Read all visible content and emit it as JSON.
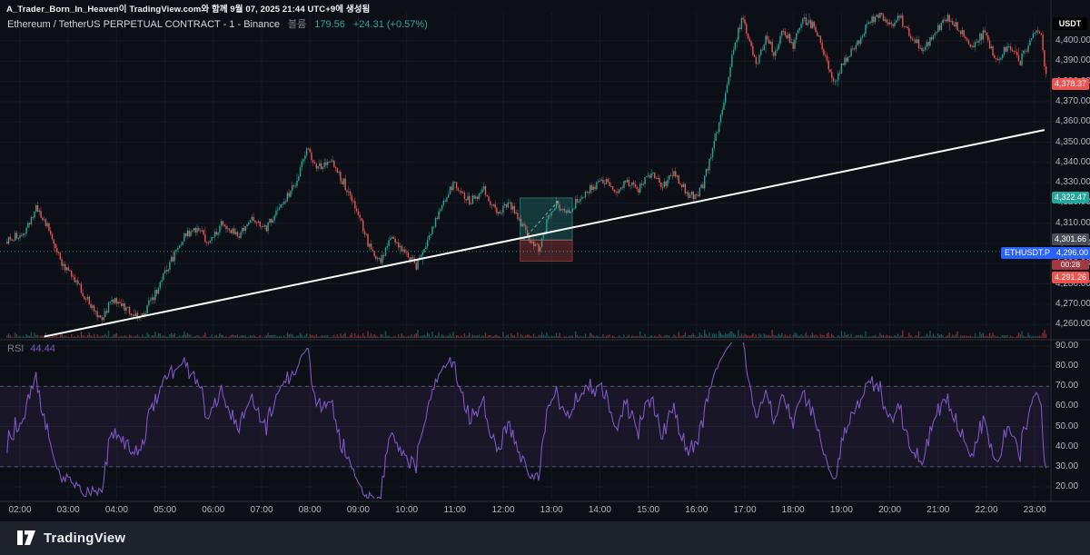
{
  "attribution": "A_Trader_Born_In_Heaven이 TradingView.com와 함께 9월 07, 2025 21:44 UTC+9에 생성됨",
  "header": {
    "symbol_title": "Ethereum / TetherUS PERPETUAL CONTRACT - 1 - Binance",
    "volume_label": "볼륨",
    "volume_value": "179.56",
    "change_text": "+24.31 (+0.57%)"
  },
  "price_scale": {
    "currency_button": "USDT",
    "ticks": [
      "4,400.00",
      "4,390.00",
      "4,380.00",
      "4,370.00",
      "4,360.00",
      "4,350.00",
      "4,340.00",
      "4,330.00",
      "4,320.00",
      "4,310.00",
      "4,300.00",
      "4,290.00",
      "4,280.00",
      "4,270.00",
      "4,260.00"
    ],
    "badges": [
      {
        "id": "last-price",
        "text": "4,378.37",
        "bg": "#ef5350",
        "price": 4378.37
      },
      {
        "id": "target-price",
        "text": "4,322.47",
        "bg": "#26a69a",
        "price": 4322.47
      },
      {
        "id": "entry-price",
        "text": "4,301.66",
        "bg": "#4a4e59",
        "price": 4301.66
      },
      {
        "id": "symbol-price",
        "label": "ETHUSDT.P",
        "text": "4,296.00",
        "bg": "#2962ff",
        "price": 4296.0,
        "countdown": "00:28",
        "countdown_bg": "#a03a40"
      },
      {
        "id": "stop-price",
        "text": "4,291.26",
        "bg": "#ef5350",
        "price": 4291.26
      }
    ]
  },
  "rsi_panel": {
    "label": "RSI",
    "value": "44.44",
    "ticks": [
      "90.00",
      "80.00",
      "70.00",
      "60.00",
      "50.00",
      "40.00",
      "30.00",
      "20.00"
    ]
  },
  "time_axis": {
    "ticks": [
      "02:00",
      "03:00",
      "04:00",
      "05:00",
      "06:00",
      "07:00",
      "08:00",
      "09:00",
      "10:00",
      "11:00",
      "12:00",
      "13:00",
      "14:00",
      "15:00",
      "16:00",
      "17:00",
      "18:00",
      "19:00",
      "20:00",
      "21:00",
      "22:00",
      "23:00"
    ]
  },
  "footer": {
    "brand": "TradingView"
  },
  "chart_data": {
    "type": "candlestick",
    "symbol": "ETHUSDT.P",
    "interval": "1",
    "exchange": "Binance",
    "up_color": "#26a69a",
    "down_color": "#ef5350",
    "price_axis_range": [
      4253,
      4418
    ],
    "price_anchors": [
      [
        1.2,
        4305
      ],
      [
        1.75,
        4302
      ],
      [
        2.1,
        4306
      ],
      [
        2.35,
        4318
      ],
      [
        2.6,
        4308
      ],
      [
        2.9,
        4288
      ],
      [
        3.2,
        4280
      ],
      [
        3.5,
        4268
      ],
      [
        3.7,
        4263
      ],
      [
        3.9,
        4272
      ],
      [
        4.2,
        4268
      ],
      [
        4.5,
        4263
      ],
      [
        4.8,
        4275
      ],
      [
        5.1,
        4290
      ],
      [
        5.4,
        4304
      ],
      [
        5.7,
        4308
      ],
      [
        5.9,
        4300
      ],
      [
        6.2,
        4310
      ],
      [
        6.5,
        4304
      ],
      [
        6.8,
        4312
      ],
      [
        7.1,
        4308
      ],
      [
        7.4,
        4318
      ],
      [
        7.7,
        4330
      ],
      [
        7.95,
        4347
      ],
      [
        8.15,
        4337
      ],
      [
        8.4,
        4342
      ],
      [
        8.7,
        4330
      ],
      [
        9.0,
        4315
      ],
      [
        9.2,
        4300
      ],
      [
        9.45,
        4291
      ],
      [
        9.7,
        4303
      ],
      [
        9.95,
        4295
      ],
      [
        10.2,
        4289
      ],
      [
        10.5,
        4305
      ],
      [
        10.8,
        4322
      ],
      [
        11.0,
        4330
      ],
      [
        11.3,
        4321
      ],
      [
        11.6,
        4326
      ],
      [
        11.9,
        4314
      ],
      [
        12.1,
        4321
      ],
      [
        12.35,
        4311
      ],
      [
        12.6,
        4300
      ],
      [
        12.75,
        4297
      ],
      [
        12.9,
        4310
      ],
      [
        13.1,
        4320
      ],
      [
        13.3,
        4314
      ],
      [
        13.55,
        4322
      ],
      [
        13.8,
        4327
      ],
      [
        14.05,
        4332
      ],
      [
        14.3,
        4325
      ],
      [
        14.55,
        4331
      ],
      [
        14.8,
        4327
      ],
      [
        15.05,
        4334
      ],
      [
        15.3,
        4329
      ],
      [
        15.55,
        4334
      ],
      [
        15.8,
        4325
      ],
      [
        16.0,
        4322
      ],
      [
        16.15,
        4330
      ],
      [
        16.35,
        4348
      ],
      [
        16.55,
        4368
      ],
      [
        16.75,
        4395
      ],
      [
        16.95,
        4412
      ],
      [
        17.1,
        4398
      ],
      [
        17.25,
        4389
      ],
      [
        17.45,
        4402
      ],
      [
        17.6,
        4394
      ],
      [
        17.8,
        4406
      ],
      [
        18.0,
        4398
      ],
      [
        18.2,
        4410
      ],
      [
        18.45,
        4407
      ],
      [
        18.65,
        4392
      ],
      [
        18.85,
        4378
      ],
      [
        19.05,
        4390
      ],
      [
        19.3,
        4398
      ],
      [
        19.55,
        4408
      ],
      [
        19.8,
        4414
      ],
      [
        20.0,
        4408
      ],
      [
        20.2,
        4412
      ],
      [
        20.45,
        4402
      ],
      [
        20.7,
        4396
      ],
      [
        20.95,
        4405
      ],
      [
        21.2,
        4412
      ],
      [
        21.45,
        4405
      ],
      [
        21.7,
        4398
      ],
      [
        21.95,
        4404
      ],
      [
        22.2,
        4391
      ],
      [
        22.45,
        4397
      ],
      [
        22.7,
        4390
      ],
      [
        22.9,
        4399
      ],
      [
        23.05,
        4406
      ],
      [
        23.15,
        4401
      ],
      [
        23.25,
        4378
      ]
    ],
    "trendline": {
      "from_time": 2.5,
      "from_price": 4254,
      "to_time": 23.2,
      "to_price": 4356,
      "color": "#ffffff"
    },
    "position_tool": {
      "time_start": 12.35,
      "time_end": 13.43,
      "entry": 4301.66,
      "target": 4322.47,
      "stop": 4291.26
    },
    "price_line": {
      "price": 4296.0,
      "color": "#26a69a"
    },
    "last_price": 4378.37,
    "rsi": {
      "period": 14,
      "color": "#7e57c2",
      "upper_band": 70,
      "lower_band": 30,
      "range": [
        20,
        90
      ],
      "last_value": 44.44
    }
  }
}
